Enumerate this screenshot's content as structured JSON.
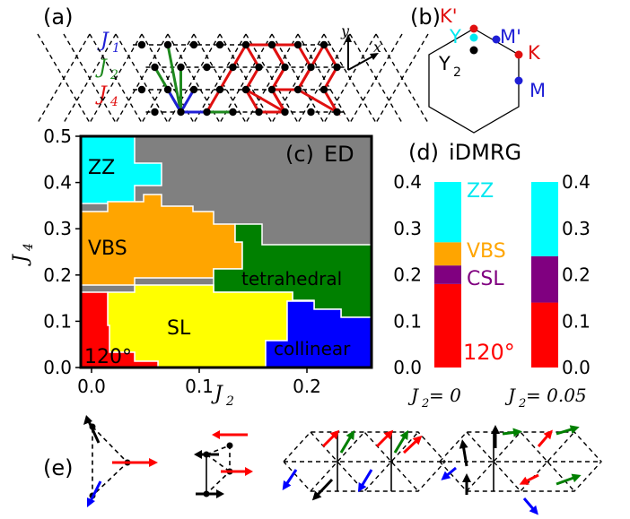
{
  "panel_labels": {
    "a": "(a)",
    "b": "(b)",
    "c": "(c)",
    "d": "(d)",
    "e": "(e)"
  },
  "panel_a": {
    "legend": [
      {
        "text": "J",
        "sub": "1",
        "color": "#1f1fd6"
      },
      {
        "text": "J",
        "sub": "2",
        "color": "#1f8a1f"
      },
      {
        "text": "J",
        "sub": "4",
        "color": "#e01010"
      }
    ],
    "axis_y": "y",
    "axis_x": "x"
  },
  "panel_b": {
    "points": [
      {
        "label": "K'",
        "color": "#e01010"
      },
      {
        "label": "M'",
        "color": "#1f1fd6"
      },
      {
        "label": "K",
        "color": "#e01010"
      },
      {
        "label": "M",
        "color": "#1f1fd6"
      },
      {
        "label": "Y",
        "color": "#00d8e0"
      },
      {
        "label": "Y",
        "sub": "2",
        "color": "#000000"
      }
    ]
  },
  "panel_c": {
    "title": "ED",
    "ylabel": "J",
    "ylabel_sub": "4",
    "xlabel": "J",
    "xlabel_sub": "2",
    "yticks": [
      "0.0",
      "0.1",
      "0.2",
      "0.3",
      "0.4",
      "0.5"
    ],
    "xticks": [
      "0.0",
      "0.1",
      "0.2"
    ],
    "xlim": [
      -0.01,
      0.26
    ],
    "ylim": [
      0,
      0.5
    ],
    "phases": [
      {
        "name": "ZZ",
        "color": "#00ffff"
      },
      {
        "name": "VBS",
        "color": "#ffa500"
      },
      {
        "name": "tetrahedral",
        "color": "#008000"
      },
      {
        "name": "SL",
        "color": "#ffff00"
      },
      {
        "name": "collinear",
        "color": "#0000ff"
      },
      {
        "name": "120°",
        "color": "#ff0000"
      },
      {
        "name": "",
        "color": "#808080"
      }
    ]
  },
  "panel_d": {
    "title": "iDMRG",
    "yticks": [
      "0.0",
      "0.1",
      "0.2",
      "0.3",
      "0.4"
    ],
    "columns": [
      {
        "label": "J",
        "sub": "2",
        "eq": " = 0"
      },
      {
        "label": "J",
        "sub": "2",
        "eq": " = 0.05"
      }
    ],
    "phase_labels": [
      {
        "name": "ZZ",
        "color": "#00e8f0"
      },
      {
        "name": "VBS",
        "color": "#ffa500"
      },
      {
        "name": "CSL",
        "color": "#800080"
      },
      {
        "name": "120°",
        "color": "#ff0000"
      }
    ]
  },
  "chart_data": [
    {
      "type": "heatmap",
      "title": "ED",
      "xlabel": "J2",
      "ylabel": "J4",
      "xlim": [
        -0.01,
        0.26
      ],
      "ylim": [
        0,
        0.5
      ],
      "regions": [
        {
          "phase": "120°",
          "J2_range": [
            0.0,
            0.04
          ],
          "J4_range": [
            0.0,
            0.12
          ]
        },
        {
          "phase": "SL",
          "J2_range": [
            0.04,
            0.17
          ],
          "J4_range": [
            0.0,
            0.14
          ]
        },
        {
          "phase": "collinear",
          "J2_range": [
            0.17,
            0.26
          ],
          "J4_range": [
            0.0,
            0.16
          ]
        },
        {
          "phase": "VBS",
          "J2_range": [
            0.0,
            0.14
          ],
          "J4_range": [
            0.14,
            0.31
          ]
        },
        {
          "phase": "tetrahedral",
          "J2_range": [
            0.14,
            0.26
          ],
          "J4_range": [
            0.13,
            0.28
          ]
        },
        {
          "phase": "ZZ",
          "J2_range": [
            0.0,
            0.05
          ],
          "J4_range": [
            0.31,
            0.5
          ]
        },
        {
          "phase": "unlabeled (gray)",
          "J2_range": [
            0.05,
            0.26
          ],
          "J4_range": [
            0.28,
            0.5
          ]
        }
      ]
    },
    {
      "type": "bar",
      "title": "iDMRG",
      "categories": [
        "J2 = 0",
        "J2 = 0.05"
      ],
      "ylim": [
        0,
        0.4
      ],
      "series": [
        {
          "name": "120°",
          "values": [
            [
              0.0,
              0.18
            ],
            [
              0.0,
              0.14
            ]
          ]
        },
        {
          "name": "CSL",
          "values": [
            [
              0.18,
              0.22
            ],
            [
              0.14,
              0.24
            ]
          ]
        },
        {
          "name": "VBS",
          "values": [
            [
              0.22,
              0.27
            ],
            null
          ]
        },
        {
          "name": "ZZ",
          "values": [
            [
              0.27,
              0.4
            ],
            [
              0.24,
              0.4
            ]
          ]
        }
      ]
    }
  ]
}
